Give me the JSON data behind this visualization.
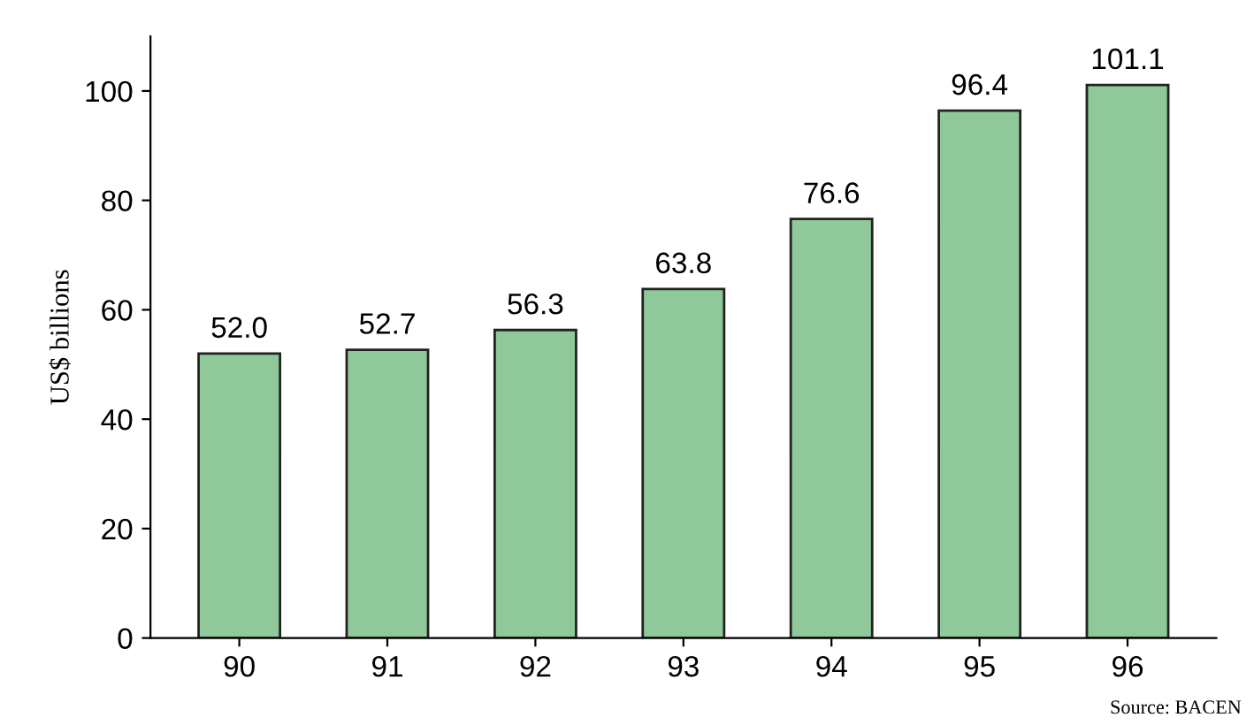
{
  "chart_data": {
    "type": "bar",
    "categories": [
      "90",
      "91",
      "92",
      "93",
      "94",
      "95",
      "96"
    ],
    "values": [
      52.0,
      52.7,
      56.3,
      63.8,
      76.6,
      96.4,
      101.1
    ],
    "value_labels": [
      "52.0",
      "52.7",
      "56.3",
      "63.8",
      "76.6",
      "96.4",
      "101.1"
    ],
    "color": "#8fc99a",
    "ylabel": "US$ billions",
    "ylim": [
      0,
      110
    ],
    "yticks": [
      0,
      20,
      40,
      60,
      80,
      100
    ],
    "grid": false,
    "annotations": [
      "Source: BACEN"
    ]
  }
}
